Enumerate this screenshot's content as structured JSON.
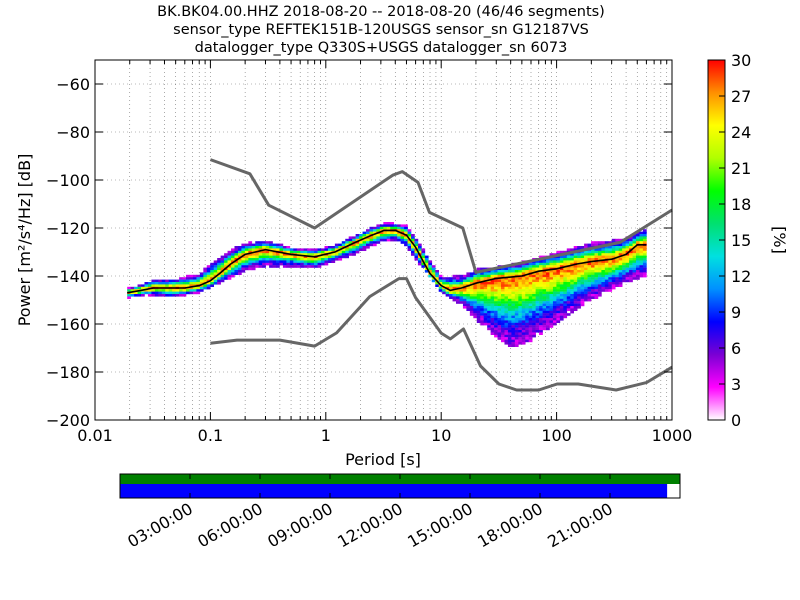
{
  "chart_data": {
    "type": "heatmap",
    "title_lines": [
      "BK.BK04.00.HHZ   2018-08-20 -- 2018-08-20  (46/46 segments)",
      "sensor_type REFTEK151B-120USGS sensor_sn G12187VS",
      "datalogger_type Q330S+USGS datalogger_sn 6073"
    ],
    "xlabel": "Period [s]",
    "ylabel": "Power [m²/s⁴/Hz] [dB]",
    "xscale": "log",
    "xlim": [
      0.01,
      1000
    ],
    "ylim": [
      -200,
      -50
    ],
    "x_ticks": [
      {
        "value": 0.01,
        "label": "0.01"
      },
      {
        "value": 0.1,
        "label": "0.1"
      },
      {
        "value": 1,
        "label": "1"
      },
      {
        "value": 10,
        "label": "10"
      },
      {
        "value": 100,
        "label": "100"
      },
      {
        "value": 1000,
        "label": "1000"
      }
    ],
    "y_ticks": [
      -60,
      -80,
      -100,
      -120,
      -140,
      -160,
      -180,
      -200
    ],
    "grid": "dotted",
    "colorbar": {
      "label": "[%]",
      "range": [
        0,
        30
      ],
      "ticks": [
        0,
        3,
        6,
        9,
        12,
        15,
        18,
        21,
        24,
        27,
        30
      ],
      "colormap": [
        "#ffffff",
        "#ff00ff",
        "#7a00d4",
        "#0000ff",
        "#0090ff",
        "#00e0e0",
        "#00e070",
        "#00ff00",
        "#b0ff00",
        "#ffff00",
        "#ff9000",
        "#ff0000"
      ]
    },
    "psd_mode_curve": {
      "name": "mode",
      "color": "#000000",
      "x": [
        0.019,
        0.025,
        0.032,
        0.04,
        0.05,
        0.06,
        0.08,
        0.1,
        0.12,
        0.15,
        0.2,
        0.3,
        0.5,
        0.8,
        1.2,
        1.8,
        2.5,
        3.2,
        4,
        5,
        6,
        7,
        8,
        10,
        12,
        15,
        20,
        30,
        50,
        70,
        100,
        150,
        200,
        300,
        400,
        500,
        600
      ],
      "y": [
        -147,
        -146,
        -145,
        -145,
        -145,
        -145,
        -144,
        -142,
        -139,
        -135,
        -131,
        -129,
        -131,
        -132,
        -130,
        -126,
        -123,
        -121,
        -121,
        -123,
        -128,
        -134,
        -139,
        -144,
        -146,
        -145,
        -143,
        -141,
        -140,
        -138,
        -137,
        -135,
        -134,
        -133,
        -131,
        -127,
        -127
      ]
    },
    "psd_spread": [
      {
        "x": 0.02,
        "lo": -149,
        "hi": -145
      },
      {
        "x": 0.03,
        "lo": -148,
        "hi": -142
      },
      {
        "x": 0.05,
        "lo": -149,
        "hi": -141
      },
      {
        "x": 0.08,
        "lo": -147,
        "hi": -139
      },
      {
        "x": 0.1,
        "lo": -145,
        "hi": -135
      },
      {
        "x": 0.15,
        "lo": -141,
        "hi": -129
      },
      {
        "x": 0.2,
        "lo": -138,
        "hi": -126
      },
      {
        "x": 0.3,
        "lo": -136,
        "hi": -125
      },
      {
        "x": 0.5,
        "lo": -136,
        "hi": -128
      },
      {
        "x": 0.8,
        "lo": -137,
        "hi": -129
      },
      {
        "x": 1.2,
        "lo": -134,
        "hi": -127
      },
      {
        "x": 2,
        "lo": -130,
        "hi": -122
      },
      {
        "x": 3,
        "lo": -126,
        "hi": -118
      },
      {
        "x": 4,
        "lo": -125,
        "hi": -118
      },
      {
        "x": 5,
        "lo": -128,
        "hi": -119
      },
      {
        "x": 7,
        "lo": -137,
        "hi": -129
      },
      {
        "x": 10,
        "lo": -147,
        "hi": -140
      },
      {
        "x": 15,
        "lo": -152,
        "hi": -140
      },
      {
        "x": 20,
        "lo": -158,
        "hi": -137
      },
      {
        "x": 30,
        "lo": -166,
        "hi": -136
      },
      {
        "x": 40,
        "lo": -170,
        "hi": -135
      },
      {
        "x": 60,
        "lo": -167,
        "hi": -133
      },
      {
        "x": 100,
        "lo": -160,
        "hi": -130
      },
      {
        "x": 200,
        "lo": -150,
        "hi": -126
      },
      {
        "x": 400,
        "lo": -143,
        "hi": -124
      },
      {
        "x": 600,
        "lo": -140,
        "hi": -120
      }
    ],
    "noise_models": [
      {
        "name": "NHNM",
        "color": "#666666",
        "x": [
          0.1,
          0.22,
          0.32,
          0.8,
          3.8,
          4.6,
          6.3,
          7.9,
          15.4,
          20,
          354.8,
          1000
        ],
        "y": [
          -91.5,
          -97.4,
          -110.5,
          -120.0,
          -98.0,
          -96.5,
          -101.0,
          -113.5,
          -120.0,
          -138.5,
          -126.0,
          -112.5
        ]
      },
      {
        "name": "NLNM",
        "color": "#666666",
        "x": [
          0.1,
          0.17,
          0.4,
          0.8,
          1.24,
          2.4,
          4.3,
          5.0,
          6.0,
          10.0,
          12.0,
          15.6,
          21.9,
          31.6,
          45.0,
          70.0,
          101.0,
          154.0,
          328.0,
          600.0,
          1000.0
        ],
        "y": [
          -168.0,
          -166.7,
          -166.7,
          -169.2,
          -163.7,
          -148.6,
          -141.1,
          -141.1,
          -149.0,
          -163.8,
          -166.2,
          -162.1,
          -177.5,
          -185.0,
          -187.5,
          -187.5,
          -185.0,
          -185.0,
          -187.5,
          -184.4,
          -178.0
        ]
      }
    ],
    "time_coverage": {
      "tick_labels": [
        "03:00:00",
        "06:00:00",
        "09:00:00",
        "12:00:00",
        "15:00:00",
        "18:00:00",
        "21:00:00"
      ],
      "data_fraction": 0.977,
      "gap_fraction": 0.023,
      "data_color": "#0000ff",
      "availability_color": "#008000"
    }
  }
}
